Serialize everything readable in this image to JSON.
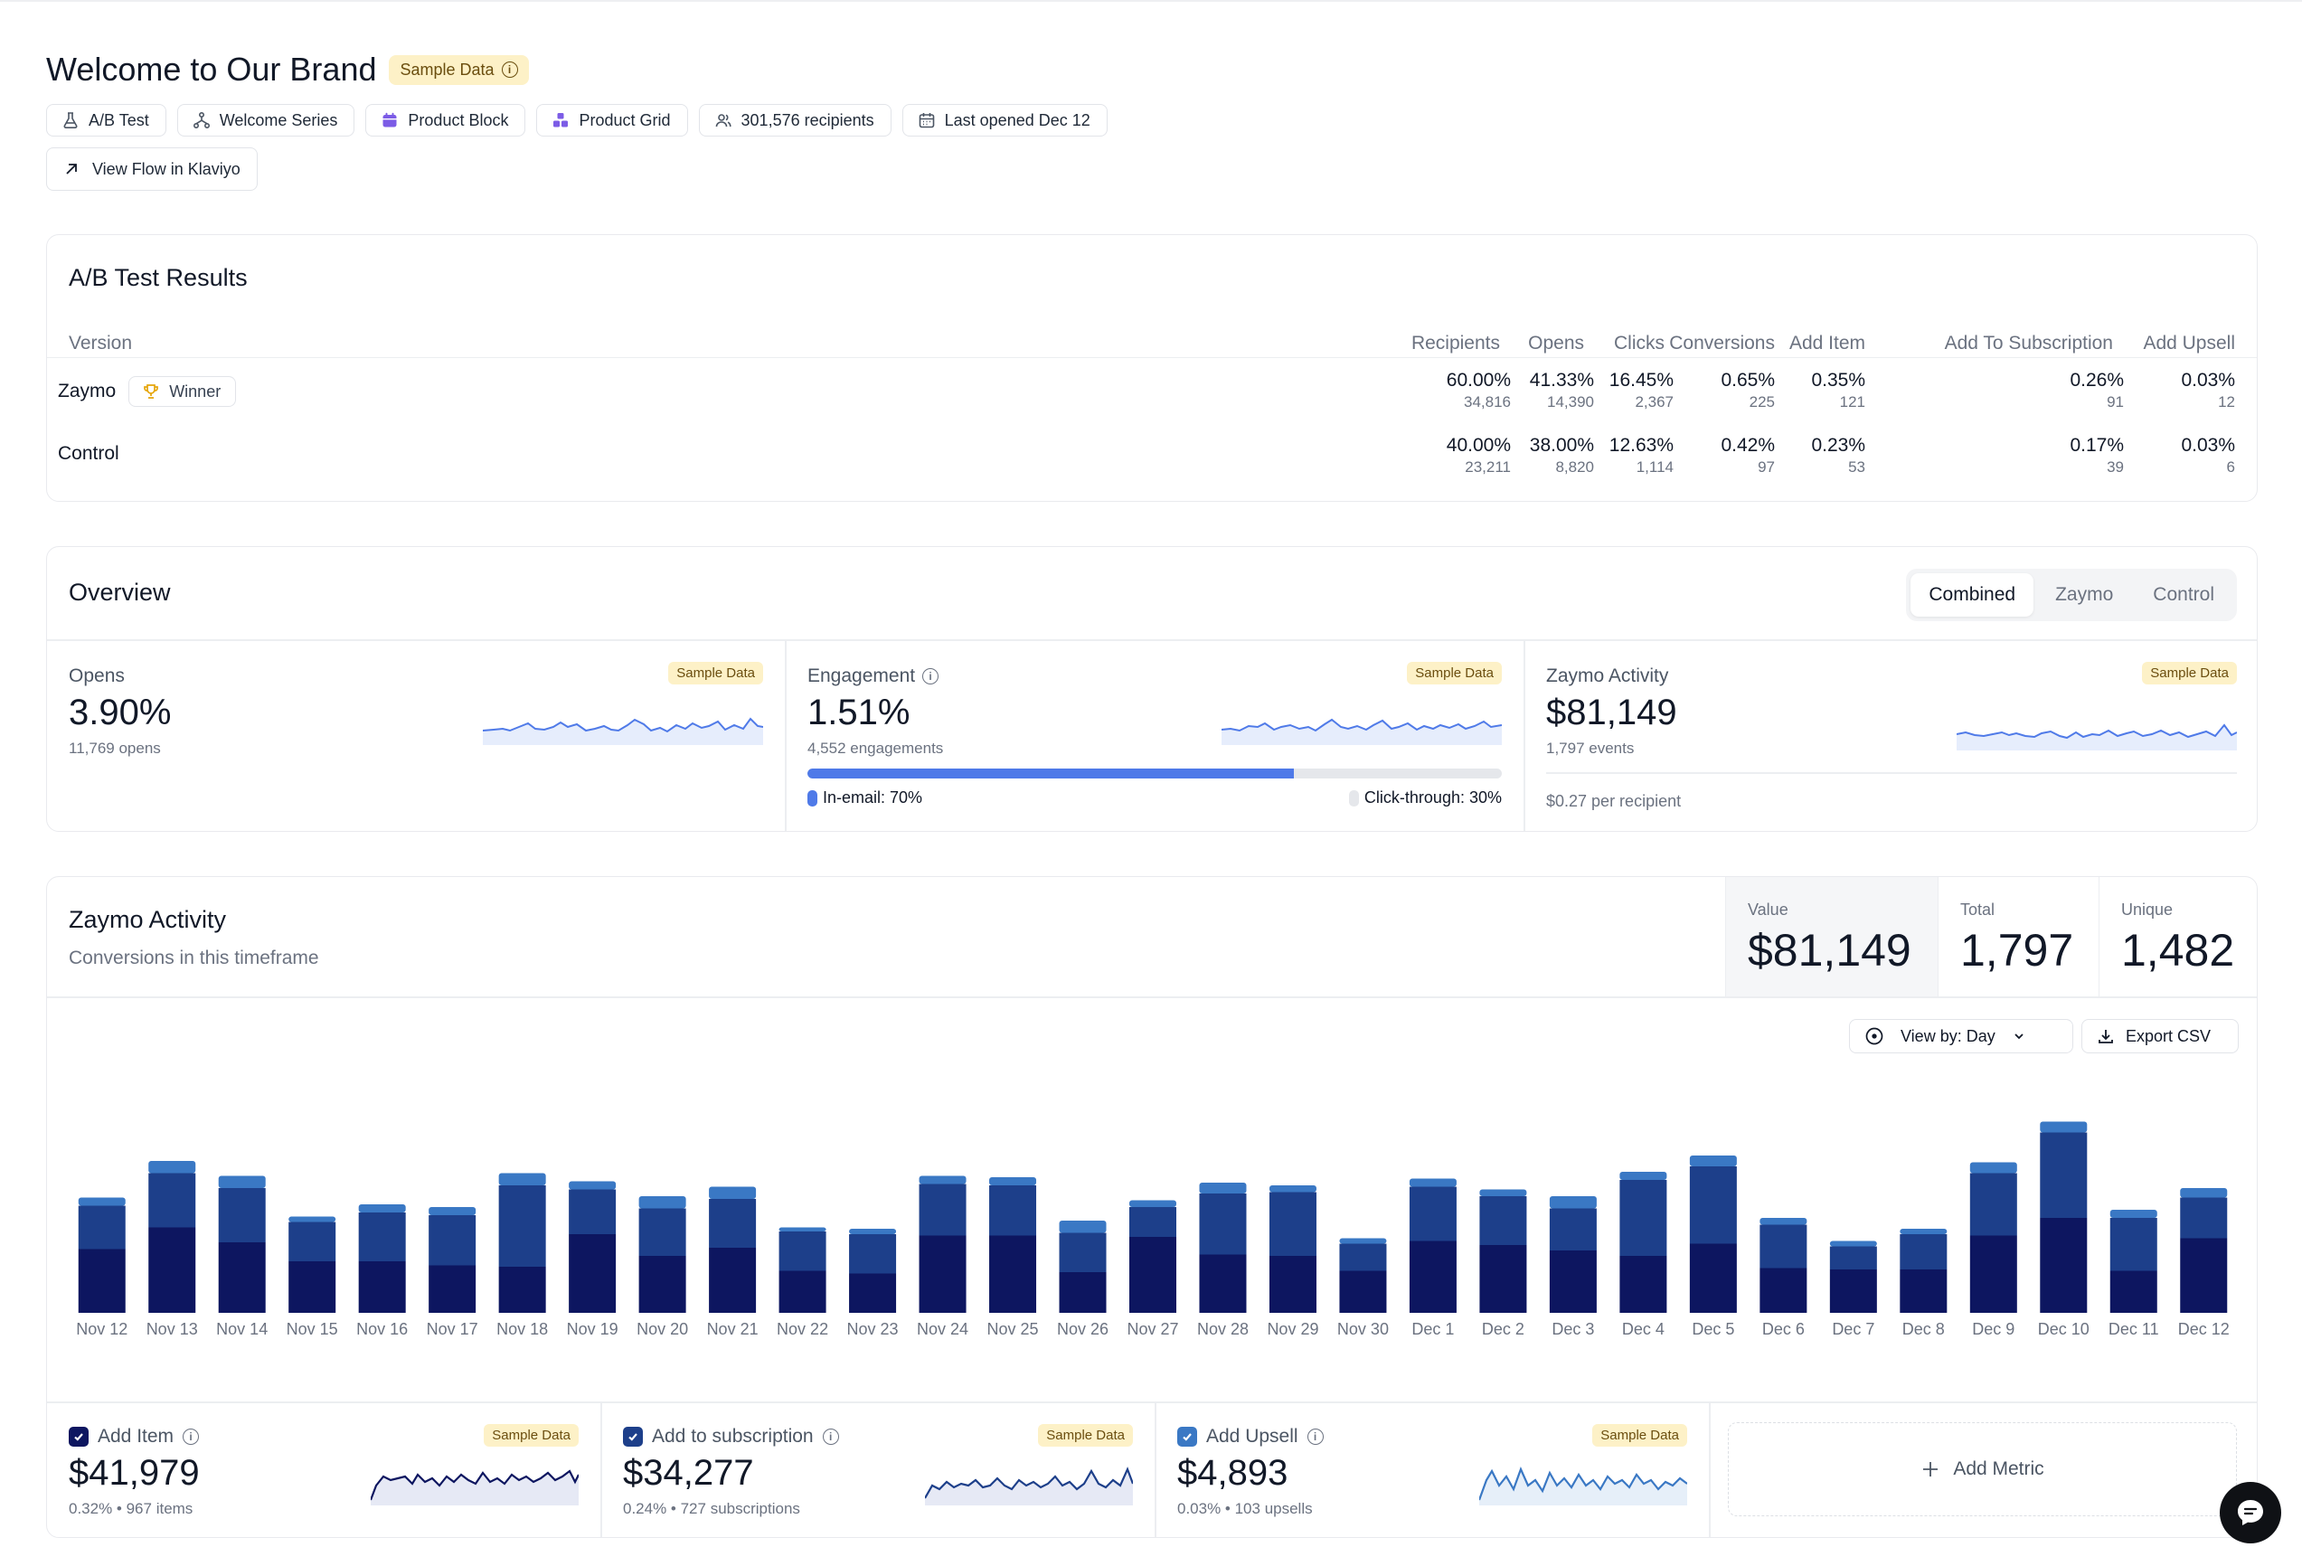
{
  "header": {
    "title": "Welcome to Our Brand",
    "badge": "Sample Data",
    "chips": [
      {
        "label": "A/B Test",
        "icon": "flask-icon"
      },
      {
        "label": "Welcome Series",
        "icon": "flow-icon"
      },
      {
        "label": "Product Block",
        "icon": "calendar-block-icon"
      },
      {
        "label": "Product Grid",
        "icon": "grid-icon"
      },
      {
        "label": "301,576 recipients",
        "icon": "users-icon"
      },
      {
        "label": "Last opened Dec 12",
        "icon": "calendar-icon"
      }
    ],
    "view_flow": "View Flow in Klaviyo"
  },
  "ab_test": {
    "title": "A/B Test Results",
    "columns": [
      "Version",
      "Recipients",
      "Opens",
      "Clicks",
      "Conversions",
      "Add Item",
      "Add To Subscription",
      "Add Upsell"
    ],
    "winner_label": "Winner",
    "rows": [
      {
        "name": "Zaymo",
        "winner": true,
        "cells": [
          [
            "60.00%",
            "34,816"
          ],
          [
            "41.33%",
            "14,390"
          ],
          [
            "16.45%",
            "2,367"
          ],
          [
            "0.65%",
            "225"
          ],
          [
            "0.35%",
            "121"
          ],
          [
            "0.26%",
            "91"
          ],
          [
            "0.03%",
            "12"
          ]
        ]
      },
      {
        "name": "Control",
        "winner": false,
        "cells": [
          [
            "40.00%",
            "23,211"
          ],
          [
            "38.00%",
            "8,820"
          ],
          [
            "12.63%",
            "1,114"
          ],
          [
            "0.42%",
            "97"
          ],
          [
            "0.23%",
            "53"
          ],
          [
            "0.17%",
            "39"
          ],
          [
            "0.03%",
            "6"
          ]
        ]
      }
    ]
  },
  "overview": {
    "title": "Overview",
    "tabs": [
      "Combined",
      "Zaymo",
      "Control"
    ],
    "active_tab": "Combined",
    "badge": "Sample Data",
    "opens": {
      "label": "Opens",
      "value": "3.90%",
      "sub": "11,769 opens"
    },
    "engagement": {
      "label": "Engagement",
      "value": "1.51%",
      "sub": "4,552 engagements",
      "in_email": "In-email: 70%",
      "click_through": "Click-through: 30%",
      "in_email_fraction": 0.7
    },
    "zaymo": {
      "label": "Zaymo Activity",
      "value": "$81,149",
      "sub": "1,797 events",
      "per_recipient": "$0.27 per recipient"
    }
  },
  "activity": {
    "title": "Zaymo Activity",
    "subtitle": "Conversions in this timeframe",
    "stats": [
      {
        "label": "Value",
        "value": "$81,149"
      },
      {
        "label": "Total",
        "value": "1,797"
      },
      {
        "label": "Unique",
        "value": "1,482"
      }
    ],
    "view_by": "View by: Day",
    "export": "Export CSV",
    "add_metric": "Add Metric",
    "badge": "Sample Data",
    "metrics": [
      {
        "label": "Add Item",
        "value": "$41,979",
        "sub": "0.32% • 967 items",
        "color": "#0d1660"
      },
      {
        "label": "Add to subscription",
        "value": "$34,277",
        "sub": "0.24% • 727 subscriptions",
        "color": "#1d3f8a"
      },
      {
        "label": "Add Upsell",
        "value": "$4,893",
        "sub": "0.03% • 103 upsells",
        "color": "#3a78c4"
      }
    ]
  },
  "chart_data": {
    "type": "bar",
    "stacked": true,
    "categories": [
      "Nov 12",
      "Nov 13",
      "Nov 14",
      "Nov 15",
      "Nov 16",
      "Nov 17",
      "Nov 18",
      "Nov 19",
      "Nov 20",
      "Nov 21",
      "Nov 22",
      "Nov 23",
      "Nov 24",
      "Nov 25",
      "Nov 26",
      "Nov 27",
      "Nov 28",
      "Nov 29",
      "Nov 30",
      "Dec 1",
      "Dec 2",
      "Dec 3",
      "Dec 4",
      "Dec 5",
      "Dec 6",
      "Dec 7",
      "Dec 8",
      "Dec 9",
      "Dec 10",
      "Dec 11",
      "Dec 12"
    ],
    "series": [
      {
        "name": "Add Item",
        "color": "#0d1660",
        "values": [
          47,
          63,
          52,
          38,
          38,
          35,
          34,
          58,
          42,
          48,
          31,
          29,
          57,
          57,
          30,
          56,
          43,
          42,
          31,
          53,
          50,
          46,
          42,
          51,
          33,
          32,
          32,
          57,
          70,
          31,
          55
        ]
      },
      {
        "name": "Add to subscription",
        "color": "#1d3f8a",
        "values": [
          32,
          40,
          40,
          29,
          36,
          37,
          60,
          33,
          35,
          36,
          29,
          29,
          38,
          37,
          29,
          22,
          45,
          47,
          20,
          40,
          36,
          31,
          56,
          57,
          32,
          17,
          26,
          46,
          63,
          39,
          30
        ]
      },
      {
        "name": "Add Upsell",
        "color": "#3a78c4",
        "values": [
          6,
          9,
          9,
          4,
          6,
          6,
          9,
          6,
          9,
          9,
          3,
          4,
          6,
          6,
          9,
          5,
          8,
          5,
          4,
          6,
          5,
          9,
          6,
          8,
          5,
          4,
          4,
          8,
          8,
          6,
          7
        ]
      }
    ]
  },
  "colors": {
    "accent": "#4f7ae8",
    "sample_badge_bg": "#fdf1c7",
    "sample_badge_text": "#6b4e0f"
  }
}
